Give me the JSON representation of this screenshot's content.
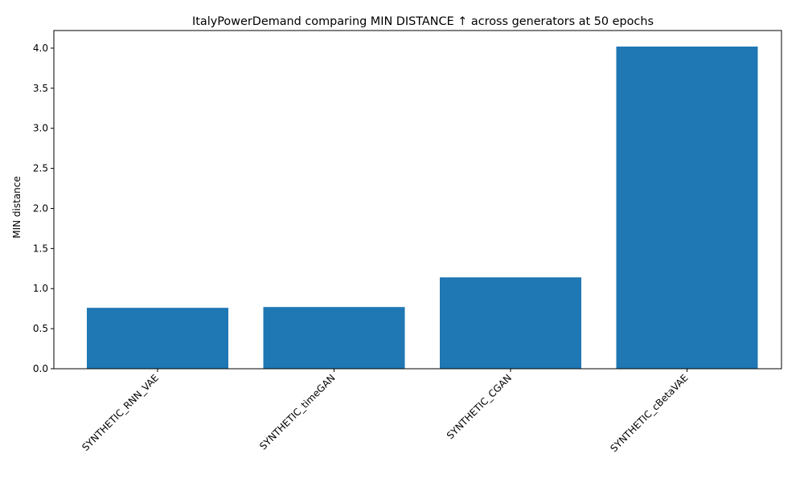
{
  "chart_data": {
    "type": "bar",
    "title": "ItalyPowerDemand comparing MIN DISTANCE ↑  across generators at 50 epochs",
    "xlabel": "",
    "ylabel": "MIN distance",
    "categories": [
      "SYNTHETIC_RNN_VAE",
      "SYNTHETIC_timeGAN",
      "SYNTHETIC_CGAN",
      "SYNTHETIC_cBetaVAE"
    ],
    "values": [
      0.76,
      0.77,
      1.14,
      4.02
    ],
    "ylim": [
      0,
      4.22
    ],
    "yticks": [
      "0.0",
      "0.5",
      "1.0",
      "1.5",
      "2.0",
      "2.5",
      "3.0",
      "3.5",
      "4.0"
    ],
    "bar_color": "#1f77b4",
    "grid": false,
    "legend": "none"
  }
}
